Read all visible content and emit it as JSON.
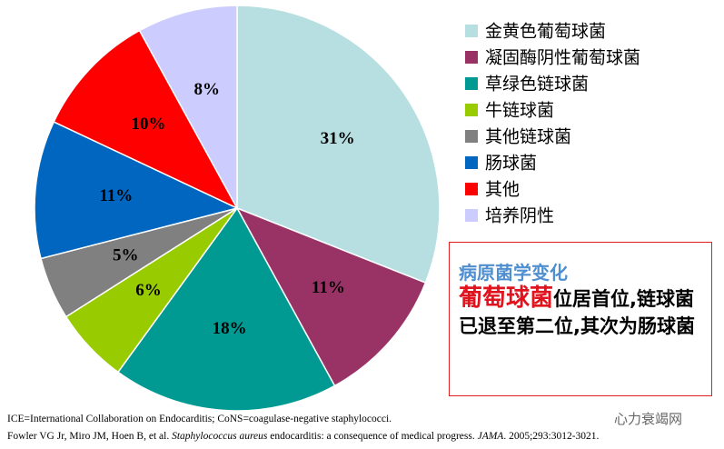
{
  "chart_data": {
    "type": "pie",
    "categories": [
      "金黄色葡萄球菌",
      "凝固酶阴性葡萄球菌",
      "草绿色链球菌",
      "牛链球菌",
      "其他链球菌",
      "肠球菌",
      "其他",
      "培养阴性"
    ],
    "values": [
      31,
      11,
      18,
      6,
      5,
      11,
      10,
      8
    ],
    "value_labels": [
      "31%",
      "11%",
      "18%",
      "6%",
      "5%",
      "11%",
      "10%",
      "8%"
    ],
    "colors": [
      "#b7dee0",
      "#993366",
      "#009a93",
      "#99cc00",
      "#808080",
      "#0066c0",
      "#ff0000",
      "#ccccff"
    ],
    "legend": "right"
  },
  "annotation": {
    "title": "病原菌学变化",
    "highlight": "葡萄球菌",
    "text": "位居首位,链球菌已退至第二位,其次为肠球菌"
  },
  "footnotes": [
    [
      {
        "text": "ICE=International Collaboration on Endocarditis; CoNS=coagulase-negative staphylococci.",
        "italic": false
      }
    ],
    [
      {
        "text": "Fowler VG Jr, Miro JM, Hoen B, et al. ",
        "italic": false
      },
      {
        "text": "Staphylococcus aureus",
        "italic": true
      },
      {
        "text": " endocarditis: a consequence of medical progress. ",
        "italic": false
      },
      {
        "text": "JAMA",
        "italic": true
      },
      {
        "text": ". 2005;293:3012-3021.",
        "italic": false
      }
    ]
  ],
  "watermark": "心力衰竭网"
}
